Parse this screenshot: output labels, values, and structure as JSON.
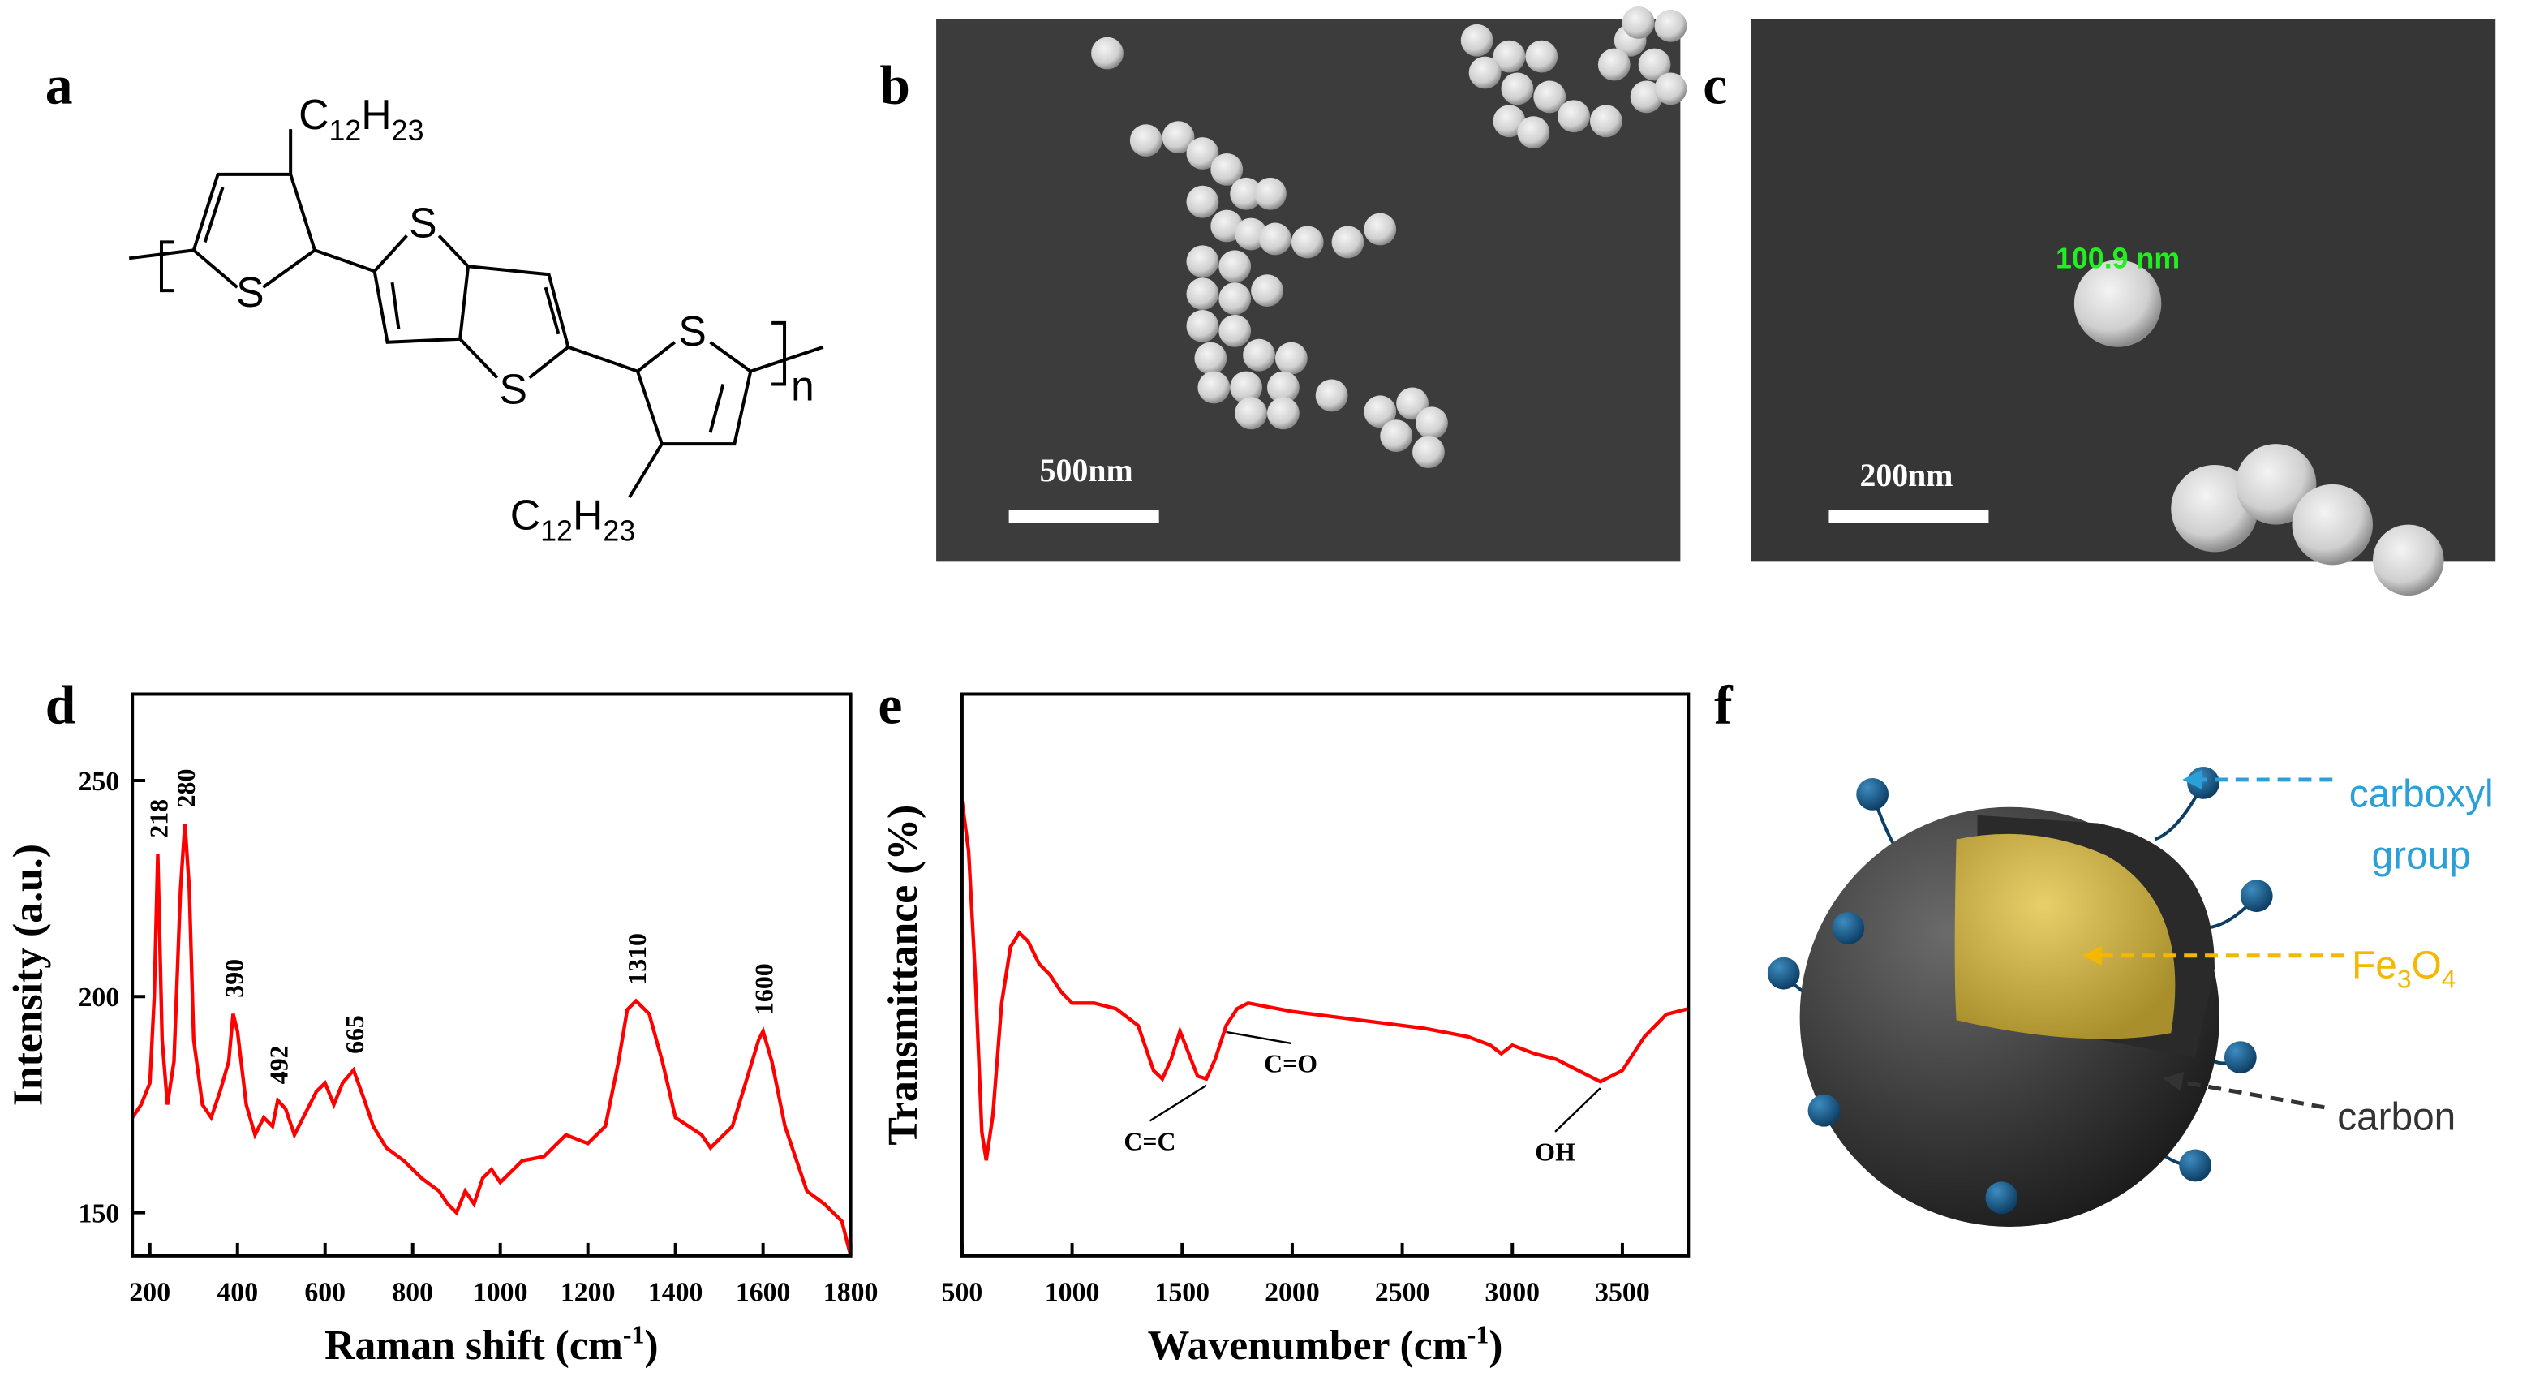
{
  "panel_labels": [
    "a",
    "b",
    "c",
    "d",
    "e",
    "f"
  ],
  "structure": {
    "substituent_top": [
      "C",
      "12",
      "H",
      "23"
    ],
    "substituent_bottom": [
      "C",
      "12",
      "H",
      "23"
    ],
    "atoms": [
      "S",
      "S",
      "S",
      "S"
    ],
    "repeat": "n"
  },
  "sem_b": {
    "scale_bar": "500nm"
  },
  "sem_c": {
    "scale_bar": "200nm",
    "measurement": "100.9 nm"
  },
  "schematic": {
    "carboxyl": [
      "carboxyl",
      "group"
    ],
    "core": [
      "Fe",
      "3",
      "O",
      "4"
    ],
    "shell": "carbon"
  },
  "chart_data": [
    {
      "type": "line",
      "x_label": [
        "Raman shift (cm",
        "-1",
        ")"
      ],
      "y_label": "Intensity (a.u.)",
      "color": "#ff0000",
      "x": [
        160,
        180,
        200,
        210,
        218,
        228,
        240,
        255,
        270,
        280,
        290,
        300,
        320,
        340,
        360,
        380,
        390,
        400,
        420,
        440,
        460,
        480,
        492,
        510,
        530,
        550,
        580,
        600,
        620,
        640,
        665,
        690,
        710,
        740,
        780,
        820,
        860,
        880,
        900,
        920,
        940,
        960,
        980,
        1000,
        1050,
        1100,
        1150,
        1200,
        1240,
        1270,
        1290,
        1310,
        1340,
        1370,
        1400,
        1430,
        1460,
        1480,
        1500,
        1530,
        1560,
        1590,
        1600,
        1620,
        1650,
        1700,
        1740,
        1780,
        1800
      ],
      "values": [
        172,
        175,
        180,
        200,
        233,
        190,
        175,
        185,
        225,
        240,
        225,
        190,
        175,
        172,
        178,
        185,
        196,
        192,
        175,
        168,
        172,
        170,
        176,
        174,
        168,
        172,
        178,
        180,
        175,
        180,
        183,
        176,
        170,
        165,
        162,
        158,
        155,
        152,
        150,
        155,
        152,
        158,
        160,
        157,
        162,
        163,
        168,
        166,
        170,
        185,
        197,
        199,
        196,
        185,
        172,
        170,
        168,
        165,
        167,
        170,
        180,
        190,
        192,
        185,
        170,
        155,
        152,
        148,
        140
      ],
      "xlim": [
        160,
        1800
      ],
      "ylim": [
        140,
        270
      ],
      "xticks": [
        200,
        400,
        600,
        800,
        1000,
        1200,
        1400,
        1600,
        1800
      ],
      "yticks": [
        150,
        200,
        250
      ],
      "annotations": [
        {
          "text": "218",
          "x": 218,
          "y": 233
        },
        {
          "text": "280",
          "x": 280,
          "y": 240
        },
        {
          "text": "390",
          "x": 390,
          "y": 196
        },
        {
          "text": "492",
          "x": 492,
          "y": 176
        },
        {
          "text": "665",
          "x": 665,
          "y": 183
        },
        {
          "text": "1310",
          "x": 1310,
          "y": 199
        },
        {
          "text": "1600",
          "x": 1600,
          "y": 192
        }
      ]
    },
    {
      "type": "line",
      "x_label": [
        "Wavenumber (cm",
        "-1",
        ")"
      ],
      "y_label": "Transmittance (%)",
      "color": "#ff0000",
      "x": [
        500,
        530,
        560,
        590,
        610,
        640,
        680,
        720,
        760,
        800,
        850,
        900,
        950,
        1000,
        1100,
        1200,
        1300,
        1370,
        1410,
        1450,
        1490,
        1530,
        1570,
        1610,
        1650,
        1700,
        1750,
        1800,
        2000,
        2200,
        2400,
        2600,
        2800,
        2900,
        2950,
        3000,
        3100,
        3200,
        3300,
        3400,
        3500,
        3600,
        3700,
        3800
      ],
      "values": [
        81,
        72,
        50,
        22,
        17,
        25,
        45,
        55,
        57.5,
        56,
        52,
        50,
        47,
        45,
        45,
        44,
        41,
        33,
        31.5,
        35,
        40,
        36,
        32,
        31.5,
        35,
        41,
        44,
        45,
        43.5,
        42.5,
        41.5,
        40.5,
        39,
        37.5,
        36,
        37.5,
        36,
        35,
        33,
        31,
        33,
        39,
        43,
        44
      ],
      "xlim": [
        500,
        3800
      ],
      "ylim": [
        0,
        100
      ],
      "xticks": [
        500,
        1000,
        1500,
        2000,
        2500,
        3000,
        3500
      ],
      "annotations": [
        {
          "text": "C=C",
          "x": 1610,
          "y": 31.5
        },
        {
          "text": "C=O",
          "x": 1700,
          "y": 41
        },
        {
          "text": "OH",
          "x": 3400,
          "y": 31
        }
      ]
    }
  ]
}
